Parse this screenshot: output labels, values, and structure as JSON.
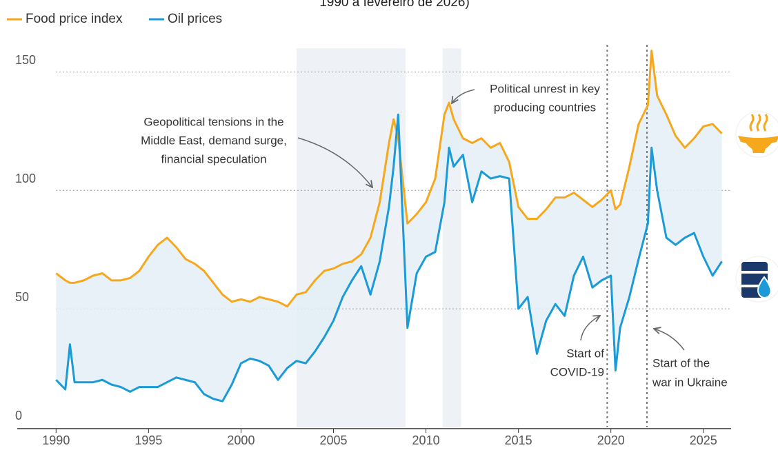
{
  "chart_data": {
    "type": "line",
    "title": "1990 a fevereiro de 2026)",
    "x": [
      1990,
      1990.5,
      1990.75,
      1991,
      1991.5,
      1992,
      1992.5,
      1993,
      1993.5,
      1994,
      1994.5,
      1995,
      1995.5,
      1996,
      1996.5,
      1997,
      1997.5,
      1998,
      1998.5,
      1999,
      1999.5,
      2000,
      2000.5,
      2001,
      2001.5,
      2002,
      2002.5,
      2003,
      2003.5,
      2004,
      2004.5,
      2005,
      2005.5,
      2006,
      2006.5,
      2007,
      2007.5,
      2008,
      2008.25,
      2008.5,
      2009,
      2009.5,
      2010,
      2010.5,
      2011,
      2011.25,
      2011.5,
      2012,
      2012.5,
      2013,
      2013.5,
      2014,
      2014.5,
      2015,
      2015.5,
      2016,
      2016.5,
      2017,
      2017.5,
      2018,
      2018.5,
      2019,
      2019.5,
      2020,
      2020.25,
      2020.5,
      2021,
      2021.5,
      2022,
      2022.2,
      2022.5,
      2023,
      2023.5,
      2024,
      2024.5,
      2025,
      2025.5,
      2026
    ],
    "series": [
      {
        "name": "Food price index",
        "color": "#f5a81c",
        "values": [
          65,
          62,
          61,
          61,
          62,
          64,
          65,
          62,
          62,
          63,
          66,
          72,
          77,
          80,
          76,
          71,
          69,
          66,
          61,
          56,
          53,
          54,
          53,
          55,
          54,
          53,
          51,
          56,
          57,
          62,
          66,
          67,
          69,
          70,
          73,
          80,
          95,
          120,
          130,
          122,
          86,
          90,
          95,
          105,
          132,
          137,
          130,
          122,
          120,
          122,
          118,
          120,
          112,
          93,
          88,
          88,
          92,
          97,
          97,
          99,
          96,
          93,
          96,
          100,
          92,
          94,
          110,
          128,
          136,
          159,
          140,
          132,
          123,
          118,
          122,
          127,
          128,
          124
        ]
      },
      {
        "name": "Oil prices",
        "color": "#1a9ad6",
        "values": [
          20,
          16,
          35,
          19,
          19,
          19,
          20,
          18,
          17,
          15,
          17,
          17,
          17,
          19,
          21,
          20,
          19,
          14,
          12,
          11,
          18,
          27,
          29,
          28,
          26,
          20,
          25,
          28,
          27,
          32,
          38,
          45,
          55,
          62,
          68,
          56,
          70,
          93,
          110,
          132,
          42,
          65,
          72,
          74,
          95,
          118,
          110,
          115,
          95,
          108,
          105,
          106,
          105,
          50,
          55,
          31,
          45,
          52,
          47,
          64,
          72,
          59,
          62,
          64,
          24,
          42,
          55,
          71,
          86,
          118,
          100,
          80,
          77,
          80,
          82,
          72,
          64,
          70
        ]
      }
    ],
    "xlim": [
      1987.9,
      2026.5
    ],
    "xticks": [
      1990,
      1995,
      2000,
      2005,
      2010,
      2015,
      2020,
      2025
    ],
    "ylim": [
      0,
      160
    ],
    "yticks": [
      0,
      50,
      100,
      150
    ],
    "grid": true,
    "shaded_periods": [
      [
        2003,
        2008.9
      ],
      [
        2010.9,
        2011.9
      ]
    ],
    "event_lines": [
      2019.8,
      2021.95
    ],
    "annotations": [
      {
        "lines": [
          "Geopolitical tensions in the",
          "Middle East, demand surge,",
          "financial speculation"
        ]
      },
      {
        "lines": [
          "Political unrest in key",
          "producing countries"
        ]
      },
      {
        "lines": [
          "Start of",
          "COVID-19"
        ]
      },
      {
        "lines": [
          "Start of the",
          "war in Ukraine"
        ]
      }
    ]
  }
}
